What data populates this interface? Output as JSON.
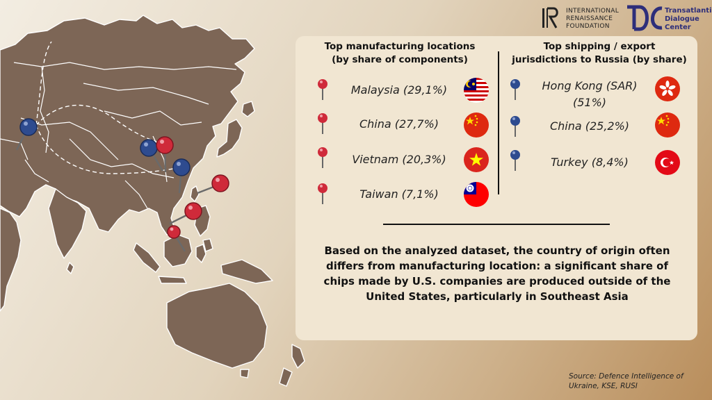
{
  "logos": {
    "irf": {
      "lines": [
        "INTERNATIONAL",
        "RENAISSANCE",
        "FOUNDATION"
      ]
    },
    "tdc": {
      "lines": [
        "Transatlantic",
        "Dialogue",
        "Center"
      ]
    }
  },
  "left_column": {
    "title_lines": [
      "Top manufacturing locations",
      "(by share of components)"
    ],
    "items": [
      {
        "label": "Malaysia (29,1%)",
        "flag": "malaysia-flag"
      },
      {
        "label": "China (27,7%)",
        "flag": "china-flag"
      },
      {
        "label": "Vietnam (20,3%)",
        "flag": "vietnam-flag"
      },
      {
        "label": "Taiwan (7,1%)",
        "flag": "taiwan-flag"
      }
    ]
  },
  "right_column": {
    "title_lines": [
      "Top shipping / export",
      "jurisdictions to Russia (by share)"
    ],
    "items": [
      {
        "label_lines": [
          "Hong Kong (SAR)",
          "(51%)"
        ],
        "flag": "hong-kong-flag"
      },
      {
        "label_lines": [
          "China (25,2%)"
        ],
        "flag": "china-flag"
      },
      {
        "label_lines": [
          "Turkey (8,4%)"
        ],
        "flag": "turkey-flag"
      }
    ]
  },
  "note_lines": [
    "Based on the analyzed dataset, the country of origin often",
    "differs from manufacturing location: a significant share of",
    "chips made by U.S. companies are produced outside of the",
    "United States, particularly in Southeast Asia"
  ],
  "source_lines": [
    "Source: Defence Intelligence of",
    "Ukraine, KSE, RUSI"
  ],
  "colors": {
    "land": "#7d6656",
    "border": "#ffffff",
    "manufacturing_pin": "#cf2a3a",
    "shipping_pin": "#2e4b8f",
    "panel": "#f1e6d2",
    "tdc_brand": "#2d2e7a"
  },
  "map_icons": [
    "manufacturing-pin-icon",
    "shipping-pin-icon"
  ]
}
